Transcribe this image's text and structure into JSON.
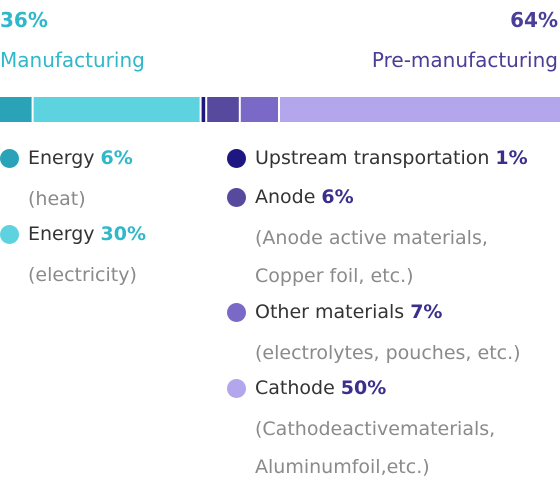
{
  "header": {
    "left": {
      "percent": "36%",
      "label": "Manufacturing"
    },
    "right": {
      "percent": "64%",
      "label": "Pre-manufacturing"
    }
  },
  "chart_data": {
    "type": "bar",
    "orientation": "horizontal-stacked",
    "unit": "%",
    "total": 100,
    "segments": [
      {
        "name": "Energy",
        "value": 6,
        "color": "#2aa3b8"
      },
      {
        "name": "Energy",
        "value": 30,
        "color": "#5dd3e0"
      },
      {
        "name": "Upstream transportation",
        "value": 1,
        "color": "#1e1782"
      },
      {
        "name": "Anode",
        "value": 6,
        "color": "#574a9e"
      },
      {
        "name": "Other materials",
        "value": 7,
        "color": "#7a69c7"
      },
      {
        "name": "Cathode",
        "value": 50,
        "color": "#b3a6ec"
      }
    ]
  },
  "legend": {
    "manufacturing": [
      {
        "name": "Energy",
        "percent": "6%",
        "desc": [
          "(heat)"
        ],
        "color": "#2aa3b8"
      },
      {
        "name": "Energy",
        "percent": "30%",
        "desc": [
          "(electricity)"
        ],
        "color": "#5dd3e0"
      }
    ],
    "pre_manufacturing": [
      {
        "name": "Upstream transportation",
        "percent": "1%",
        "desc": [],
        "color": "#1e1782"
      },
      {
        "name": "Anode",
        "percent": "6%",
        "desc": [
          "(Anode active materials,",
          "Copper foil, etc.)"
        ],
        "color": "#574a9e"
      },
      {
        "name": "Other materials",
        "percent": "7%",
        "desc": [
          "(electrolytes, pouches, etc.)"
        ],
        "color": "#7a69c7"
      },
      {
        "name": "Cathode",
        "percent": "50%",
        "desc": [
          "(Cathodeactivematerials,",
          "Aluminumfoil,etc.)"
        ],
        "color": "#b3a6ec"
      }
    ]
  }
}
